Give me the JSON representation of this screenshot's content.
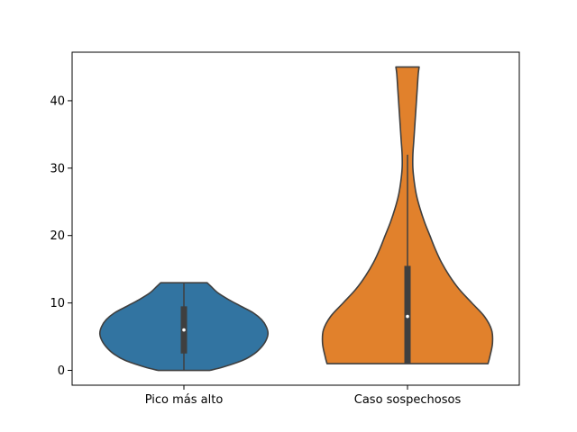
{
  "chart_data": {
    "type": "violin",
    "categories": [
      "Pico más alto",
      "Caso sospechosos"
    ],
    "ylim": [
      -2.2,
      47.2
    ],
    "yticks": [
      0,
      10,
      20,
      30,
      40
    ],
    "title": "",
    "xlabel": "",
    "ylabel": "",
    "grid": false,
    "series": [
      {
        "category": "Pico más alto",
        "color": "#3274a1",
        "min": 0,
        "max": 13,
        "q1": 2.5,
        "median": 6,
        "q3": 9.5,
        "whisker_low": 0,
        "whisker_high": 13,
        "density_profile": [
          [
            0,
            0.29
          ],
          [
            0.5,
            0.44
          ],
          [
            1.5,
            0.66
          ],
          [
            2.5,
            0.79
          ],
          [
            3.5,
            0.87
          ],
          [
            4.5,
            0.92
          ],
          [
            5.5,
            0.94
          ],
          [
            6.5,
            0.92
          ],
          [
            7.5,
            0.87
          ],
          [
            8.5,
            0.78
          ],
          [
            9.5,
            0.64
          ],
          [
            10.5,
            0.5
          ],
          [
            11.5,
            0.38
          ],
          [
            12.5,
            0.3
          ],
          [
            13,
            0.26
          ]
        ]
      },
      {
        "category": "Caso sospechosos",
        "color": "#e1812c",
        "min": 1,
        "max": 45,
        "q1": 1,
        "median": 8,
        "q3": 15.5,
        "whisker_low": 1,
        "whisker_high": 32,
        "density_profile": [
          [
            1,
            0.9
          ],
          [
            2,
            0.92
          ],
          [
            4,
            0.95
          ],
          [
            6,
            0.94
          ],
          [
            8,
            0.86
          ],
          [
            10,
            0.72
          ],
          [
            12,
            0.58
          ],
          [
            14,
            0.47
          ],
          [
            16,
            0.38
          ],
          [
            18,
            0.31
          ],
          [
            20,
            0.25
          ],
          [
            22,
            0.19
          ],
          [
            24,
            0.14
          ],
          [
            26,
            0.1
          ],
          [
            28,
            0.075
          ],
          [
            30,
            0.06
          ],
          [
            32,
            0.06
          ],
          [
            34,
            0.07
          ],
          [
            36,
            0.08
          ],
          [
            38,
            0.09
          ],
          [
            40,
            0.1
          ],
          [
            42,
            0.11
          ],
          [
            44,
            0.12
          ],
          [
            45,
            0.13
          ]
        ]
      }
    ]
  }
}
